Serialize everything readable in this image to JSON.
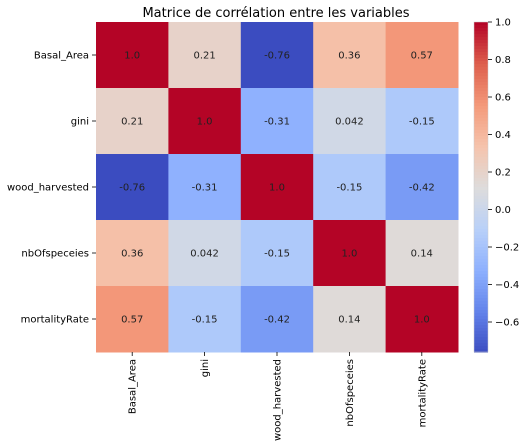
{
  "chart_data": {
    "type": "heatmap",
    "title": "Matrice de corrélation entre les variables",
    "xlabel": "",
    "ylabel": "",
    "categories": [
      "Basal_Area",
      "gini",
      "wood_harvested",
      "nbOfspeceies",
      "mortalityRate"
    ],
    "values": [
      [
        1.0,
        0.21,
        -0.76,
        0.36,
        0.57
      ],
      [
        0.21,
        1.0,
        -0.31,
        0.042,
        -0.15
      ],
      [
        -0.76,
        -0.31,
        1.0,
        -0.15,
        -0.42
      ],
      [
        0.36,
        0.042,
        -0.15,
        1.0,
        0.14
      ],
      [
        0.57,
        -0.15,
        -0.42,
        0.14,
        1.0
      ]
    ],
    "labels": [
      [
        "1.0",
        "0.21",
        "-0.76",
        "0.36",
        "0.57"
      ],
      [
        "0.21",
        "1.0",
        "-0.31",
        "0.042",
        "-0.15"
      ],
      [
        "-0.76",
        "-0.31",
        "1.0",
        "-0.15",
        "-0.42"
      ],
      [
        "0.36",
        "0.042",
        "-0.15",
        "1.0",
        "0.14"
      ],
      [
        "0.57",
        "-0.15",
        "-0.42",
        "0.14",
        "1.0"
      ]
    ],
    "colormap": "coolwarm",
    "vmin": -0.76,
    "vmax": 1.0,
    "colorbar_ticks": [
      "1.0",
      "0.8",
      "0.6",
      "0.4",
      "0.2",
      "0.0",
      "−0.2",
      "−0.4",
      "−0.6"
    ],
    "colorbar_tick_values": [
      1.0,
      0.8,
      0.6,
      0.4,
      0.2,
      0.0,
      -0.2,
      -0.4,
      -0.6
    ],
    "grid": false,
    "legend": "colorbar-right"
  }
}
